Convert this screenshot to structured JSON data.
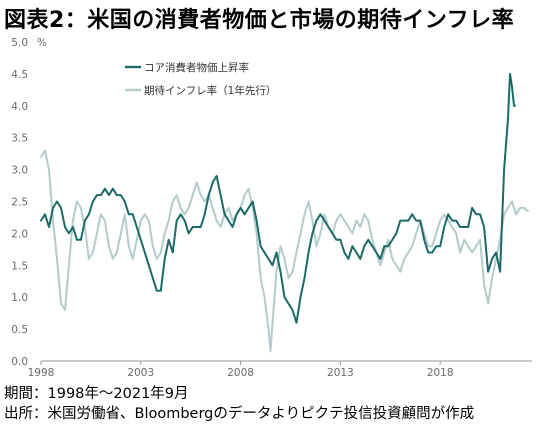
{
  "title": "図表2：米国の消費者物価と市場の期待インフレ率",
  "notes": {
    "period": "期間：1998年～2021年9月",
    "source": "出所：米国労働省、Bloombergのデータよりピクテ投信投資顧問が作成"
  },
  "chart_data": {
    "type": "line",
    "yunit": "%",
    "ylim": [
      0.0,
      5.0
    ],
    "yticks": [
      "0.0",
      "0.5",
      "1.0",
      "1.5",
      "2.0",
      "2.5",
      "3.0",
      "3.5",
      "4.0",
      "4.5",
      "5.0"
    ],
    "xlim": [
      1998.0,
      2022.6
    ],
    "xticks": [
      "1998",
      "2003",
      "2008",
      "2013",
      "2018"
    ],
    "legend_position": "top-left",
    "grid": false,
    "series": [
      {
        "name": "コア消費者物価上昇率",
        "color": "#1c6a68",
        "points": [
          [
            1998.0,
            2.2
          ],
          [
            1998.2,
            2.3
          ],
          [
            1998.4,
            2.1
          ],
          [
            1998.6,
            2.4
          ],
          [
            1998.8,
            2.5
          ],
          [
            1999.0,
            2.4
          ],
          [
            1999.2,
            2.1
          ],
          [
            1999.4,
            2.0
          ],
          [
            1999.6,
            2.1
          ],
          [
            1999.8,
            1.9
          ],
          [
            2000.0,
            1.9
          ],
          [
            2000.2,
            2.2
          ],
          [
            2000.4,
            2.3
          ],
          [
            2000.6,
            2.5
          ],
          [
            2000.8,
            2.6
          ],
          [
            2001.0,
            2.6
          ],
          [
            2001.2,
            2.7
          ],
          [
            2001.4,
            2.6
          ],
          [
            2001.6,
            2.7
          ],
          [
            2001.8,
            2.6
          ],
          [
            2002.0,
            2.6
          ],
          [
            2002.2,
            2.5
          ],
          [
            2002.4,
            2.3
          ],
          [
            2002.6,
            2.3
          ],
          [
            2002.8,
            2.1
          ],
          [
            2003.0,
            1.9
          ],
          [
            2003.2,
            1.7
          ],
          [
            2003.4,
            1.5
          ],
          [
            2003.6,
            1.3
          ],
          [
            2003.8,
            1.1
          ],
          [
            2004.0,
            1.1
          ],
          [
            2004.2,
            1.6
          ],
          [
            2004.4,
            1.9
          ],
          [
            2004.6,
            1.7
          ],
          [
            2004.8,
            2.2
          ],
          [
            2005.0,
            2.3
          ],
          [
            2005.2,
            2.2
          ],
          [
            2005.4,
            2.0
          ],
          [
            2005.6,
            2.1
          ],
          [
            2005.8,
            2.1
          ],
          [
            2006.0,
            2.1
          ],
          [
            2006.2,
            2.3
          ],
          [
            2006.4,
            2.6
          ],
          [
            2006.6,
            2.8
          ],
          [
            2006.8,
            2.9
          ],
          [
            2007.0,
            2.6
          ],
          [
            2007.2,
            2.3
          ],
          [
            2007.4,
            2.2
          ],
          [
            2007.6,
            2.1
          ],
          [
            2007.8,
            2.3
          ],
          [
            2008.0,
            2.4
          ],
          [
            2008.2,
            2.3
          ],
          [
            2008.4,
            2.4
          ],
          [
            2008.6,
            2.5
          ],
          [
            2008.8,
            2.2
          ],
          [
            2009.0,
            1.8
          ],
          [
            2009.2,
            1.7
          ],
          [
            2009.4,
            1.6
          ],
          [
            2009.6,
            1.5
          ],
          [
            2009.8,
            1.7
          ],
          [
            2010.0,
            1.4
          ],
          [
            2010.2,
            1.0
          ],
          [
            2010.4,
            0.9
          ],
          [
            2010.6,
            0.8
          ],
          [
            2010.8,
            0.6
          ],
          [
            2011.0,
            1.0
          ],
          [
            2011.2,
            1.3
          ],
          [
            2011.4,
            1.7
          ],
          [
            2011.6,
            2.0
          ],
          [
            2011.8,
            2.2
          ],
          [
            2012.0,
            2.3
          ],
          [
            2012.2,
            2.2
          ],
          [
            2012.4,
            2.1
          ],
          [
            2012.6,
            2.0
          ],
          [
            2012.8,
            1.9
          ],
          [
            2013.0,
            1.9
          ],
          [
            2013.2,
            1.7
          ],
          [
            2013.4,
            1.6
          ],
          [
            2013.6,
            1.8
          ],
          [
            2013.8,
            1.7
          ],
          [
            2014.0,
            1.6
          ],
          [
            2014.2,
            1.8
          ],
          [
            2014.4,
            1.9
          ],
          [
            2014.6,
            1.8
          ],
          [
            2014.8,
            1.7
          ],
          [
            2015.0,
            1.6
          ],
          [
            2015.2,
            1.8
          ],
          [
            2015.4,
            1.8
          ],
          [
            2015.6,
            1.9
          ],
          [
            2015.8,
            2.0
          ],
          [
            2016.0,
            2.2
          ],
          [
            2016.2,
            2.2
          ],
          [
            2016.4,
            2.2
          ],
          [
            2016.6,
            2.3
          ],
          [
            2016.8,
            2.2
          ],
          [
            2017.0,
            2.2
          ],
          [
            2017.2,
            1.9
          ],
          [
            2017.4,
            1.7
          ],
          [
            2017.6,
            1.7
          ],
          [
            2017.8,
            1.8
          ],
          [
            2018.0,
            1.8
          ],
          [
            2018.2,
            2.1
          ],
          [
            2018.4,
            2.3
          ],
          [
            2018.6,
            2.2
          ],
          [
            2018.8,
            2.2
          ],
          [
            2019.0,
            2.1
          ],
          [
            2019.2,
            2.1
          ],
          [
            2019.4,
            2.1
          ],
          [
            2019.6,
            2.4
          ],
          [
            2019.8,
            2.3
          ],
          [
            2020.0,
            2.3
          ],
          [
            2020.2,
            2.1
          ],
          [
            2020.4,
            1.4
          ],
          [
            2020.6,
            1.6
          ],
          [
            2020.8,
            1.7
          ],
          [
            2021.0,
            1.4
          ],
          [
            2021.2,
            3.0
          ],
          [
            2021.4,
            3.8
          ],
          [
            2021.5,
            4.5
          ],
          [
            2021.6,
            4.3
          ],
          [
            2021.7,
            4.0
          ],
          [
            2021.75,
            4.0
          ]
        ]
      },
      {
        "name": "期待インフレ率（1年先行）",
        "color": "#b3cbcb",
        "points": [
          [
            1998.0,
            3.2
          ],
          [
            1998.2,
            3.3
          ],
          [
            1998.4,
            3.0
          ],
          [
            1998.6,
            2.2
          ],
          [
            1998.8,
            1.6
          ],
          [
            1999.0,
            0.9
          ],
          [
            1999.2,
            0.8
          ],
          [
            1999.4,
            1.5
          ],
          [
            1999.6,
            2.2
          ],
          [
            1999.8,
            2.5
          ],
          [
            2000.0,
            2.4
          ],
          [
            2000.2,
            2.1
          ],
          [
            2000.4,
            1.6
          ],
          [
            2000.6,
            1.7
          ],
          [
            2000.8,
            2.0
          ],
          [
            2001.0,
            2.3
          ],
          [
            2001.2,
            2.2
          ],
          [
            2001.4,
            1.8
          ],
          [
            2001.6,
            1.6
          ],
          [
            2001.8,
            1.7
          ],
          [
            2002.0,
            2.0
          ],
          [
            2002.2,
            2.3
          ],
          [
            2002.4,
            1.8
          ],
          [
            2002.6,
            1.6
          ],
          [
            2002.8,
            1.9
          ],
          [
            2003.0,
            2.2
          ],
          [
            2003.2,
            2.3
          ],
          [
            2003.4,
            2.2
          ],
          [
            2003.6,
            1.8
          ],
          [
            2003.8,
            1.6
          ],
          [
            2004.0,
            1.7
          ],
          [
            2004.2,
            2.0
          ],
          [
            2004.4,
            2.2
          ],
          [
            2004.6,
            2.5
          ],
          [
            2004.8,
            2.6
          ],
          [
            2005.0,
            2.4
          ],
          [
            2005.2,
            2.3
          ],
          [
            2005.4,
            2.4
          ],
          [
            2005.6,
            2.6
          ],
          [
            2005.8,
            2.8
          ],
          [
            2006.0,
            2.6
          ],
          [
            2006.2,
            2.5
          ],
          [
            2006.4,
            2.6
          ],
          [
            2006.6,
            2.4
          ],
          [
            2006.8,
            2.2
          ],
          [
            2007.0,
            2.1
          ],
          [
            2007.2,
            2.3
          ],
          [
            2007.4,
            2.4
          ],
          [
            2007.6,
            2.2
          ],
          [
            2007.8,
            2.3
          ],
          [
            2008.0,
            2.4
          ],
          [
            2008.2,
            2.6
          ],
          [
            2008.4,
            2.7
          ],
          [
            2008.6,
            2.4
          ],
          [
            2008.8,
            2.0
          ],
          [
            2009.0,
            1.3
          ],
          [
            2009.2,
            1.0
          ],
          [
            2009.4,
            0.5
          ],
          [
            2009.5,
            0.15
          ],
          [
            2009.6,
            0.6
          ],
          [
            2009.8,
            1.4
          ],
          [
            2010.0,
            1.8
          ],
          [
            2010.2,
            1.6
          ],
          [
            2010.4,
            1.3
          ],
          [
            2010.6,
            1.4
          ],
          [
            2010.8,
            1.7
          ],
          [
            2011.0,
            2.0
          ],
          [
            2011.2,
            2.3
          ],
          [
            2011.4,
            2.5
          ],
          [
            2011.6,
            2.2
          ],
          [
            2011.8,
            1.8
          ],
          [
            2012.0,
            2.0
          ],
          [
            2012.2,
            2.3
          ],
          [
            2012.4,
            2.1
          ],
          [
            2012.6,
            2.0
          ],
          [
            2012.8,
            2.2
          ],
          [
            2013.0,
            2.3
          ],
          [
            2013.2,
            2.2
          ],
          [
            2013.4,
            2.1
          ],
          [
            2013.6,
            2.0
          ],
          [
            2013.8,
            2.2
          ],
          [
            2014.0,
            2.1
          ],
          [
            2014.2,
            2.3
          ],
          [
            2014.4,
            2.2
          ],
          [
            2014.6,
            1.9
          ],
          [
            2014.8,
            1.7
          ],
          [
            2015.0,
            1.5
          ],
          [
            2015.2,
            1.7
          ],
          [
            2015.4,
            1.9
          ],
          [
            2015.6,
            1.6
          ],
          [
            2015.8,
            1.5
          ],
          [
            2016.0,
            1.4
          ],
          [
            2016.2,
            1.6
          ],
          [
            2016.4,
            1.7
          ],
          [
            2016.6,
            1.8
          ],
          [
            2016.8,
            2.0
          ],
          [
            2017.0,
            2.2
          ],
          [
            2017.2,
            2.0
          ],
          [
            2017.4,
            1.8
          ],
          [
            2017.6,
            1.8
          ],
          [
            2017.8,
            2.0
          ],
          [
            2018.0,
            2.2
          ],
          [
            2018.2,
            2.3
          ],
          [
            2018.4,
            2.2
          ],
          [
            2018.6,
            2.1
          ],
          [
            2018.8,
            2.0
          ],
          [
            2019.0,
            1.7
          ],
          [
            2019.2,
            1.9
          ],
          [
            2019.4,
            1.8
          ],
          [
            2019.6,
            1.7
          ],
          [
            2019.8,
            1.8
          ],
          [
            2020.0,
            1.9
          ],
          [
            2020.2,
            1.2
          ],
          [
            2020.4,
            0.9
          ],
          [
            2020.6,
            1.3
          ],
          [
            2020.8,
            1.6
          ],
          [
            2021.0,
            1.9
          ],
          [
            2021.2,
            2.3
          ],
          [
            2021.4,
            2.4
          ],
          [
            2021.6,
            2.5
          ],
          [
            2021.8,
            2.3
          ],
          [
            2022.0,
            2.4
          ],
          [
            2022.2,
            2.4
          ],
          [
            2022.4,
            2.35
          ]
        ]
      }
    ]
  }
}
